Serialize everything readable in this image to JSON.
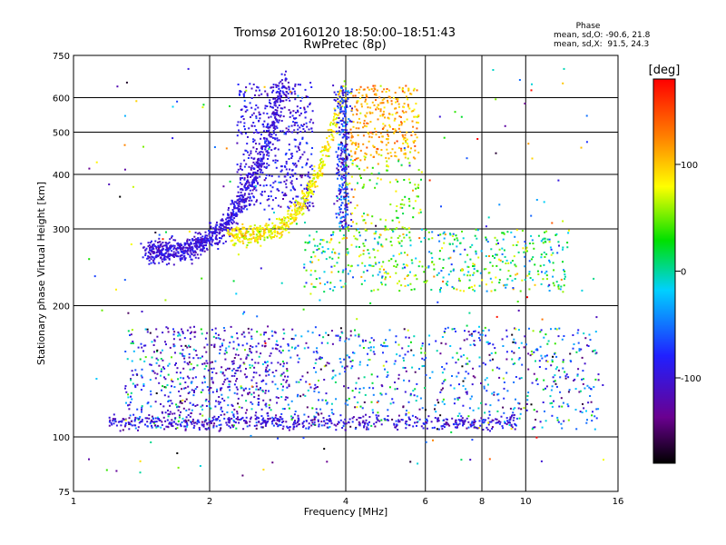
{
  "chart_data": {
    "type": "scatter",
    "title": "Tromsø 20160120 18:50:00–18:51:43",
    "subtitle": "RwPretec (8p)",
    "xlabel": "Frequency [MHz]",
    "ylabel": "Stationary phase Virtual Height [km]",
    "xscale": "log",
    "yscale": "log",
    "xlim": [
      1,
      16
    ],
    "ylim": [
      75,
      750
    ],
    "xticks": [
      1,
      2,
      4,
      6,
      8,
      10,
      16
    ],
    "xtick_labels": [
      "1",
      "2",
      "4",
      "6",
      "8",
      "10",
      "16"
    ],
    "xgrid": [
      2,
      4,
      6,
      8,
      10
    ],
    "yticks": [
      75,
      100,
      200,
      300,
      400,
      500,
      600,
      750
    ],
    "ytick_labels": [
      "75",
      "100",
      "200",
      "300",
      "400",
      "500",
      "600",
      "750"
    ],
    "ygrid": [
      100,
      200,
      300,
      400,
      500,
      600
    ],
    "grid": true,
    "phase_stats": {
      "heading": "Phase",
      "o_line": "mean, sd,O: -90.6, 21.8",
      "x_line": "mean, sd,X:  91.5, 24.3"
    },
    "colorbar": {
      "label": "[deg]",
      "range": [
        -180,
        180
      ],
      "ticks": [
        100,
        0,
        -100
      ],
      "tick_labels": [
        "100",
        "0",
        "-100"
      ],
      "colormap": "rainbow: black → purple → blue → cyan → green → yellow → orange → red"
    },
    "clusters": [
      {
        "region": "O-mode F trace",
        "f_range": [
          1.4,
          2.9
        ],
        "h_range": [
          265,
          660
        ],
        "phase": -100
      },
      {
        "region": "X-mode F trace",
        "f_range": [
          2.1,
          3.9
        ],
        "h_range": [
          290,
          660
        ],
        "phase": 90
      },
      {
        "region": "F2 cusp O",
        "f_range": [
          3.9,
          4.1
        ],
        "h_range": [
          300,
          640
        ],
        "phase": -100
      },
      {
        "region": "F2 cusp X",
        "f_range": [
          4.2,
          5.8
        ],
        "h_range": [
          450,
          640
        ],
        "phase": 110
      },
      {
        "region": "Spread F",
        "f_range": [
          4.0,
          12.0
        ],
        "h_range": [
          220,
          300
        ],
        "phase": 40
      },
      {
        "region": "Sporadic E band",
        "f_range": [
          1.3,
          14.0
        ],
        "h_range": [
          105,
          175
        ],
        "phase": -80
      },
      {
        "region": "E floor",
        "f_range": [
          1.2,
          9.0
        ],
        "h_range": [
          105,
          115
        ],
        "phase": -100
      }
    ]
  }
}
